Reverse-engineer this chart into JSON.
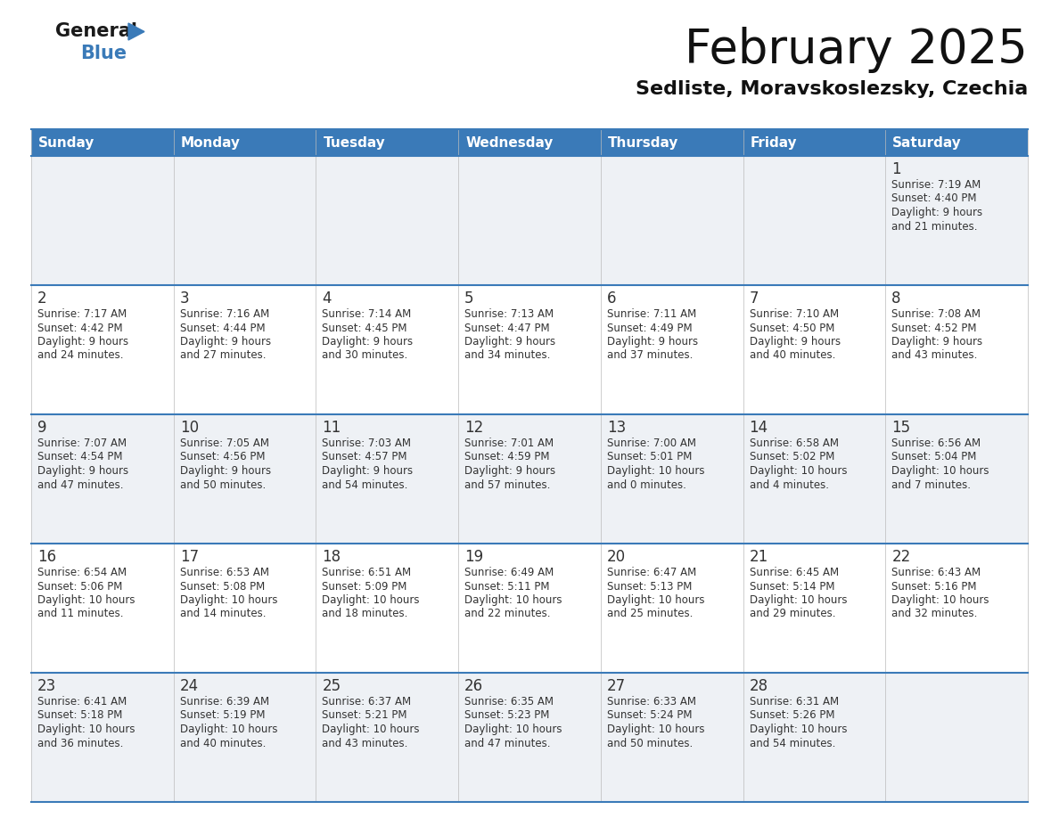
{
  "title": "February 2025",
  "subtitle": "Sedliste, Moravskoslezsky, Czechia",
  "days_of_week": [
    "Sunday",
    "Monday",
    "Tuesday",
    "Wednesday",
    "Thursday",
    "Friday",
    "Saturday"
  ],
  "header_bg": "#3a7ab8",
  "header_text": "#ffffff",
  "cell_bg_odd": "#eef1f5",
  "cell_bg_even": "#ffffff",
  "separator_color": "#3a7ab8",
  "day_number_color": "#333333",
  "text_color": "#333333",
  "logo_color_general": "#1a1a1a",
  "logo_color_blue": "#3a7ab8",
  "logo_triangle_color": "#3a7ab8",
  "calendar_data": [
    [
      {
        "day": null
      },
      {
        "day": null
      },
      {
        "day": null
      },
      {
        "day": null
      },
      {
        "day": null
      },
      {
        "day": null
      },
      {
        "day": 1,
        "sunrise": "7:19 AM",
        "sunset": "4:40 PM",
        "daylight_h": "9 hours",
        "daylight_m": "and 21 minutes."
      }
    ],
    [
      {
        "day": 2,
        "sunrise": "7:17 AM",
        "sunset": "4:42 PM",
        "daylight_h": "9 hours",
        "daylight_m": "and 24 minutes."
      },
      {
        "day": 3,
        "sunrise": "7:16 AM",
        "sunset": "4:44 PM",
        "daylight_h": "9 hours",
        "daylight_m": "and 27 minutes."
      },
      {
        "day": 4,
        "sunrise": "7:14 AM",
        "sunset": "4:45 PM",
        "daylight_h": "9 hours",
        "daylight_m": "and 30 minutes."
      },
      {
        "day": 5,
        "sunrise": "7:13 AM",
        "sunset": "4:47 PM",
        "daylight_h": "9 hours",
        "daylight_m": "and 34 minutes."
      },
      {
        "day": 6,
        "sunrise": "7:11 AM",
        "sunset": "4:49 PM",
        "daylight_h": "9 hours",
        "daylight_m": "and 37 minutes."
      },
      {
        "day": 7,
        "sunrise": "7:10 AM",
        "sunset": "4:50 PM",
        "daylight_h": "9 hours",
        "daylight_m": "and 40 minutes."
      },
      {
        "day": 8,
        "sunrise": "7:08 AM",
        "sunset": "4:52 PM",
        "daylight_h": "9 hours",
        "daylight_m": "and 43 minutes."
      }
    ],
    [
      {
        "day": 9,
        "sunrise": "7:07 AM",
        "sunset": "4:54 PM",
        "daylight_h": "9 hours",
        "daylight_m": "and 47 minutes."
      },
      {
        "day": 10,
        "sunrise": "7:05 AM",
        "sunset": "4:56 PM",
        "daylight_h": "9 hours",
        "daylight_m": "and 50 minutes."
      },
      {
        "day": 11,
        "sunrise": "7:03 AM",
        "sunset": "4:57 PM",
        "daylight_h": "9 hours",
        "daylight_m": "and 54 minutes."
      },
      {
        "day": 12,
        "sunrise": "7:01 AM",
        "sunset": "4:59 PM",
        "daylight_h": "9 hours",
        "daylight_m": "and 57 minutes."
      },
      {
        "day": 13,
        "sunrise": "7:00 AM",
        "sunset": "5:01 PM",
        "daylight_h": "10 hours",
        "daylight_m": "and 0 minutes."
      },
      {
        "day": 14,
        "sunrise": "6:58 AM",
        "sunset": "5:02 PM",
        "daylight_h": "10 hours",
        "daylight_m": "and 4 minutes."
      },
      {
        "day": 15,
        "sunrise": "6:56 AM",
        "sunset": "5:04 PM",
        "daylight_h": "10 hours",
        "daylight_m": "and 7 minutes."
      }
    ],
    [
      {
        "day": 16,
        "sunrise": "6:54 AM",
        "sunset": "5:06 PM",
        "daylight_h": "10 hours",
        "daylight_m": "and 11 minutes."
      },
      {
        "day": 17,
        "sunrise": "6:53 AM",
        "sunset": "5:08 PM",
        "daylight_h": "10 hours",
        "daylight_m": "and 14 minutes."
      },
      {
        "day": 18,
        "sunrise": "6:51 AM",
        "sunset": "5:09 PM",
        "daylight_h": "10 hours",
        "daylight_m": "and 18 minutes."
      },
      {
        "day": 19,
        "sunrise": "6:49 AM",
        "sunset": "5:11 PM",
        "daylight_h": "10 hours",
        "daylight_m": "and 22 minutes."
      },
      {
        "day": 20,
        "sunrise": "6:47 AM",
        "sunset": "5:13 PM",
        "daylight_h": "10 hours",
        "daylight_m": "and 25 minutes."
      },
      {
        "day": 21,
        "sunrise": "6:45 AM",
        "sunset": "5:14 PM",
        "daylight_h": "10 hours",
        "daylight_m": "and 29 minutes."
      },
      {
        "day": 22,
        "sunrise": "6:43 AM",
        "sunset": "5:16 PM",
        "daylight_h": "10 hours",
        "daylight_m": "and 32 minutes."
      }
    ],
    [
      {
        "day": 23,
        "sunrise": "6:41 AM",
        "sunset": "5:18 PM",
        "daylight_h": "10 hours",
        "daylight_m": "and 36 minutes."
      },
      {
        "day": 24,
        "sunrise": "6:39 AM",
        "sunset": "5:19 PM",
        "daylight_h": "10 hours",
        "daylight_m": "and 40 minutes."
      },
      {
        "day": 25,
        "sunrise": "6:37 AM",
        "sunset": "5:21 PM",
        "daylight_h": "10 hours",
        "daylight_m": "and 43 minutes."
      },
      {
        "day": 26,
        "sunrise": "6:35 AM",
        "sunset": "5:23 PM",
        "daylight_h": "10 hours",
        "daylight_m": "and 47 minutes."
      },
      {
        "day": 27,
        "sunrise": "6:33 AM",
        "sunset": "5:24 PM",
        "daylight_h": "10 hours",
        "daylight_m": "and 50 minutes."
      },
      {
        "day": 28,
        "sunrise": "6:31 AM",
        "sunset": "5:26 PM",
        "daylight_h": "10 hours",
        "daylight_m": "and 54 minutes."
      },
      {
        "day": null
      }
    ]
  ]
}
